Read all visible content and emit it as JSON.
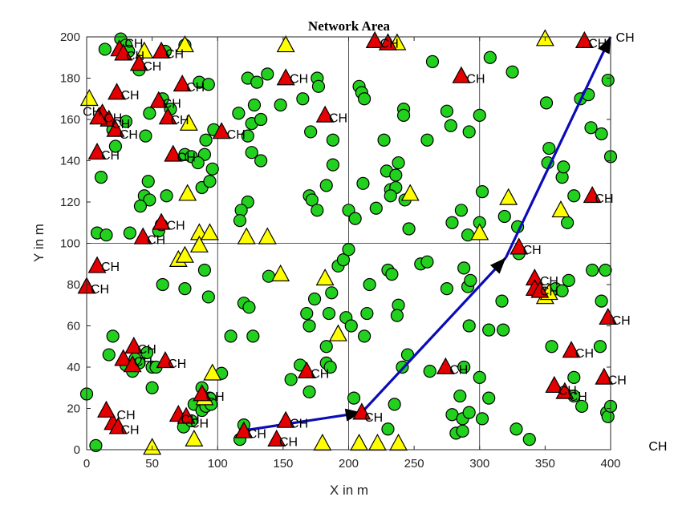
{
  "chart_data": {
    "type": "scatter",
    "title": "Network Area",
    "xlabel": "X in m",
    "ylabel": "Y in m",
    "xlim": [
      0,
      400
    ],
    "ylim": [
      0,
      200
    ],
    "x_ticks": [
      "0",
      "50",
      "100",
      "150",
      "200",
      "250",
      "300",
      "350",
      "400"
    ],
    "y_ticks": [
      "0",
      "20",
      "40",
      "60",
      "80",
      "100",
      "120",
      "140",
      "160",
      "180",
      "200"
    ],
    "grid_lines": {
      "x": [
        100,
        200,
        300
      ],
      "y": [
        100
      ]
    },
    "colors": {
      "normal_node": "#22d11e",
      "cluster_head": "#e40000",
      "yellow_node": "#ffff00",
      "route": "#0b0bb8"
    },
    "cluster_head_label": "CH",
    "normal_nodes": [
      [
        26,
        199
      ],
      [
        30,
        196
      ],
      [
        32,
        193
      ],
      [
        60,
        193
      ],
      [
        75,
        196
      ],
      [
        14,
        194
      ],
      [
        40,
        184
      ],
      [
        86,
        178
      ],
      [
        93,
        177
      ],
      [
        58,
        170
      ],
      [
        64,
        165
      ],
      [
        48,
        163
      ],
      [
        30,
        159
      ],
      [
        20,
        155
      ],
      [
        22,
        147
      ],
      [
        11,
        132
      ],
      [
        45,
        152
      ],
      [
        47,
        130
      ],
      [
        44,
        123
      ],
      [
        48,
        121
      ],
      [
        41,
        118
      ],
      [
        8,
        105
      ],
      [
        15,
        104
      ],
      [
        33,
        105
      ],
      [
        61,
        123
      ],
      [
        55,
        106
      ],
      [
        57,
        109
      ],
      [
        75,
        143
      ],
      [
        80,
        142
      ],
      [
        88,
        127
      ],
      [
        94,
        130
      ],
      [
        91,
        150
      ],
      [
        97,
        155
      ],
      [
        96,
        136
      ],
      [
        90,
        143
      ],
      [
        85,
        139
      ],
      [
        123,
        180
      ],
      [
        130,
        178
      ],
      [
        138,
        182
      ],
      [
        126,
        158
      ],
      [
        133,
        160
      ],
      [
        128,
        167
      ],
      [
        116,
        163
      ],
      [
        123,
        152
      ],
      [
        126,
        144
      ],
      [
        133,
        140
      ],
      [
        148,
        167
      ],
      [
        165,
        170
      ],
      [
        176,
        180
      ],
      [
        177,
        176
      ],
      [
        171,
        154
      ],
      [
        188,
        150
      ],
      [
        188,
        138
      ],
      [
        183,
        128
      ],
      [
        170,
        123
      ],
      [
        172,
        121
      ],
      [
        176,
        116
      ],
      [
        200,
        116
      ],
      [
        205,
        112
      ],
      [
        123,
        120
      ],
      [
        118,
        116
      ],
      [
        117,
        111
      ],
      [
        208,
        176
      ],
      [
        210,
        173
      ],
      [
        212,
        170
      ],
      [
        242,
        165
      ],
      [
        242,
        162
      ],
      [
        264,
        188
      ],
      [
        275,
        164
      ],
      [
        278,
        157
      ],
      [
        227,
        150
      ],
      [
        260,
        150
      ],
      [
        292,
        154
      ],
      [
        300,
        162
      ],
      [
        229,
        135
      ],
      [
        236,
        133
      ],
      [
        238,
        139
      ],
      [
        232,
        126
      ],
      [
        236,
        127
      ],
      [
        232,
        123
      ],
      [
        243,
        121
      ],
      [
        221,
        117
      ],
      [
        211,
        129
      ],
      [
        246,
        107
      ],
      [
        279,
        110
      ],
      [
        286,
        116
      ],
      [
        291,
        104
      ],
      [
        300,
        110
      ],
      [
        302,
        125
      ],
      [
        319,
        113
      ],
      [
        329,
        108
      ],
      [
        308,
        190
      ],
      [
        325,
        183
      ],
      [
        351,
        168
      ],
      [
        353,
        146
      ],
      [
        352,
        139
      ],
      [
        363,
        132
      ],
      [
        367,
        110
      ],
      [
        364,
        137
      ],
      [
        372,
        123
      ],
      [
        377,
        170
      ],
      [
        383,
        172
      ],
      [
        385,
        156
      ],
      [
        393,
        153
      ],
      [
        398,
        179
      ],
      [
        400,
        142
      ],
      [
        117,
        5
      ],
      [
        120,
        71
      ],
      [
        124,
        69
      ],
      [
        127,
        55
      ],
      [
        139,
        84
      ],
      [
        156,
        34
      ],
      [
        163,
        41
      ],
      [
        170,
        28
      ],
      [
        168,
        66
      ],
      [
        174,
        73
      ],
      [
        183,
        50
      ],
      [
        170,
        60
      ],
      [
        185,
        66
      ],
      [
        183,
        42
      ],
      [
        186,
        40
      ],
      [
        187,
        76
      ],
      [
        192,
        89
      ],
      [
        196,
        92
      ],
      [
        200,
        97
      ],
      [
        198,
        64
      ],
      [
        202,
        60
      ],
      [
        204,
        25
      ],
      [
        212,
        55
      ],
      [
        214,
        66
      ],
      [
        216,
        80
      ],
      [
        230,
        87
      ],
      [
        233,
        85
      ],
      [
        238,
        70
      ],
      [
        237,
        65
      ],
      [
        241,
        40
      ],
      [
        245,
        46
      ],
      [
        235,
        22
      ],
      [
        230,
        10
      ],
      [
        255,
        90
      ],
      [
        260,
        91
      ],
      [
        262,
        38
      ],
      [
        275,
        78
      ],
      [
        288,
        88
      ],
      [
        291,
        79
      ],
      [
        293,
        82
      ],
      [
        292,
        60
      ],
      [
        288,
        40
      ],
      [
        285,
        26
      ],
      [
        279,
        17
      ],
      [
        282,
        8
      ],
      [
        287,
        15
      ],
      [
        292,
        18
      ],
      [
        287,
        9
      ],
      [
        300,
        35
      ],
      [
        302,
        15
      ],
      [
        307,
        25
      ],
      [
        307,
        58
      ],
      [
        317,
        72
      ],
      [
        318,
        58
      ],
      [
        328,
        10
      ],
      [
        330,
        95
      ],
      [
        338,
        5
      ],
      [
        355,
        50
      ],
      [
        358,
        78
      ],
      [
        363,
        77
      ],
      [
        372,
        35
      ],
      [
        372,
        26
      ],
      [
        378,
        21
      ],
      [
        386,
        87
      ],
      [
        393,
        72
      ],
      [
        397,
        18
      ],
      [
        398,
        16
      ],
      [
        400,
        21
      ],
      [
        392,
        50
      ],
      [
        396,
        87
      ],
      [
        368,
        82
      ],
      [
        0,
        27
      ],
      [
        7,
        2
      ],
      [
        17,
        46
      ],
      [
        20,
        55
      ],
      [
        30,
        41
      ],
      [
        35,
        38
      ],
      [
        40,
        42
      ],
      [
        46,
        47
      ],
      [
        50,
        40
      ],
      [
        50,
        30
      ],
      [
        53,
        40
      ],
      [
        37,
        44
      ],
      [
        74,
        11
      ],
      [
        80,
        14
      ],
      [
        82,
        22
      ],
      [
        88,
        19
      ],
      [
        91,
        21
      ],
      [
        94,
        25
      ],
      [
        95,
        22
      ],
      [
        103,
        37
      ],
      [
        110,
        55
      ],
      [
        93,
        74
      ],
      [
        90,
        87
      ],
      [
        58,
        80
      ],
      [
        75,
        78
      ],
      [
        88,
        30
      ],
      [
        120,
        12
      ]
    ],
    "cluster_heads": [
      [
        25,
        194
      ],
      [
        28,
        192
      ],
      [
        40,
        187
      ],
      [
        57,
        193
      ],
      [
        23,
        173
      ],
      [
        55,
        169
      ],
      [
        73,
        177
      ],
      [
        12,
        163
      ],
      [
        17,
        160
      ],
      [
        22,
        155
      ],
      [
        9,
        161
      ],
      [
        8,
        144
      ],
      [
        62,
        161
      ],
      [
        66,
        143
      ],
      [
        103,
        154
      ],
      [
        57,
        110
      ],
      [
        43,
        103
      ],
      [
        152,
        180
      ],
      [
        182,
        162
      ],
      [
        220,
        198
      ],
      [
        230,
        197
      ],
      [
        286,
        181
      ],
      [
        380,
        198
      ],
      [
        386,
        123
      ],
      [
        8,
        89
      ],
      [
        0,
        79
      ],
      [
        20,
        13
      ],
      [
        28,
        44
      ],
      [
        36,
        50
      ],
      [
        35,
        41
      ],
      [
        60,
        43
      ],
      [
        15,
        19
      ],
      [
        24,
        11
      ],
      [
        70,
        17
      ],
      [
        76,
        16
      ],
      [
        88,
        27
      ],
      [
        120,
        9
      ],
      [
        145,
        5
      ],
      [
        152,
        14
      ],
      [
        168,
        38
      ],
      [
        210,
        18
      ],
      [
        274,
        40
      ],
      [
        330,
        98
      ],
      [
        342,
        83
      ],
      [
        342,
        78
      ],
      [
        346,
        77
      ],
      [
        357,
        31
      ],
      [
        365,
        28
      ],
      [
        370,
        48
      ],
      [
        398,
        64
      ],
      [
        395,
        35
      ]
    ],
    "yellow_nodes": [
      [
        2,
        170
      ],
      [
        44,
        193
      ],
      [
        75,
        196
      ],
      [
        78,
        158
      ],
      [
        77,
        124
      ],
      [
        152,
        196
      ],
      [
        230,
        197
      ],
      [
        237,
        197
      ],
      [
        247,
        124
      ],
      [
        350,
        199
      ],
      [
        362,
        116
      ],
      [
        322,
        122
      ],
      [
        300,
        105
      ],
      [
        70,
        92
      ],
      [
        75,
        94
      ],
      [
        86,
        105
      ],
      [
        86,
        99
      ],
      [
        94,
        105
      ],
      [
        122,
        103
      ],
      [
        138,
        103
      ],
      [
        148,
        85
      ],
      [
        182,
        83
      ],
      [
        192,
        56
      ],
      [
        96,
        37
      ],
      [
        90,
        25
      ],
      [
        50,
        1
      ],
      [
        82,
        5
      ],
      [
        180,
        3
      ],
      [
        208,
        3
      ],
      [
        222,
        3
      ],
      [
        238,
        3
      ],
      [
        350,
        74
      ],
      [
        353,
        76
      ]
    ],
    "route": [
      [
        117,
        9
      ],
      [
        210,
        18
      ],
      [
        320,
        93
      ],
      [
        400,
        200
      ]
    ],
    "ch_text_labels": [
      [
        29,
        197
      ],
      [
        30,
        191
      ],
      [
        43,
        186
      ],
      [
        60,
        192
      ],
      [
        26,
        172
      ],
      [
        58,
        168
      ],
      [
        76,
        176
      ],
      [
        -3,
        164
      ],
      [
        13,
        161
      ],
      [
        19,
        158
      ],
      [
        25,
        153
      ],
      [
        11,
        143
      ],
      [
        64,
        160
      ],
      [
        69,
        142
      ],
      [
        107,
        153
      ],
      [
        61,
        109
      ],
      [
        46,
        102
      ],
      [
        155,
        180
      ],
      [
        185,
        161
      ],
      [
        224,
        197
      ],
      [
        290,
        180
      ],
      [
        383,
        197
      ],
      [
        388,
        122
      ],
      [
        11,
        89
      ],
      [
        3,
        78
      ],
      [
        23,
        17
      ],
      [
        26,
        10
      ],
      [
        39,
        49
      ],
      [
        36,
        43
      ],
      [
        62,
        42
      ],
      [
        72,
        15
      ],
      [
        79,
        13
      ],
      [
        91,
        26
      ],
      [
        123,
        8
      ],
      [
        147,
        4
      ],
      [
        155,
        13
      ],
      [
        171,
        37
      ],
      [
        212,
        16
      ],
      [
        277,
        39
      ],
      [
        333,
        97
      ],
      [
        346,
        82
      ],
      [
        346,
        77
      ],
      [
        360,
        29
      ],
      [
        368,
        26
      ],
      [
        373,
        47
      ],
      [
        401,
        63
      ],
      [
        398,
        34
      ],
      [
        404,
        200
      ],
      [
        429,
        2
      ]
    ]
  }
}
